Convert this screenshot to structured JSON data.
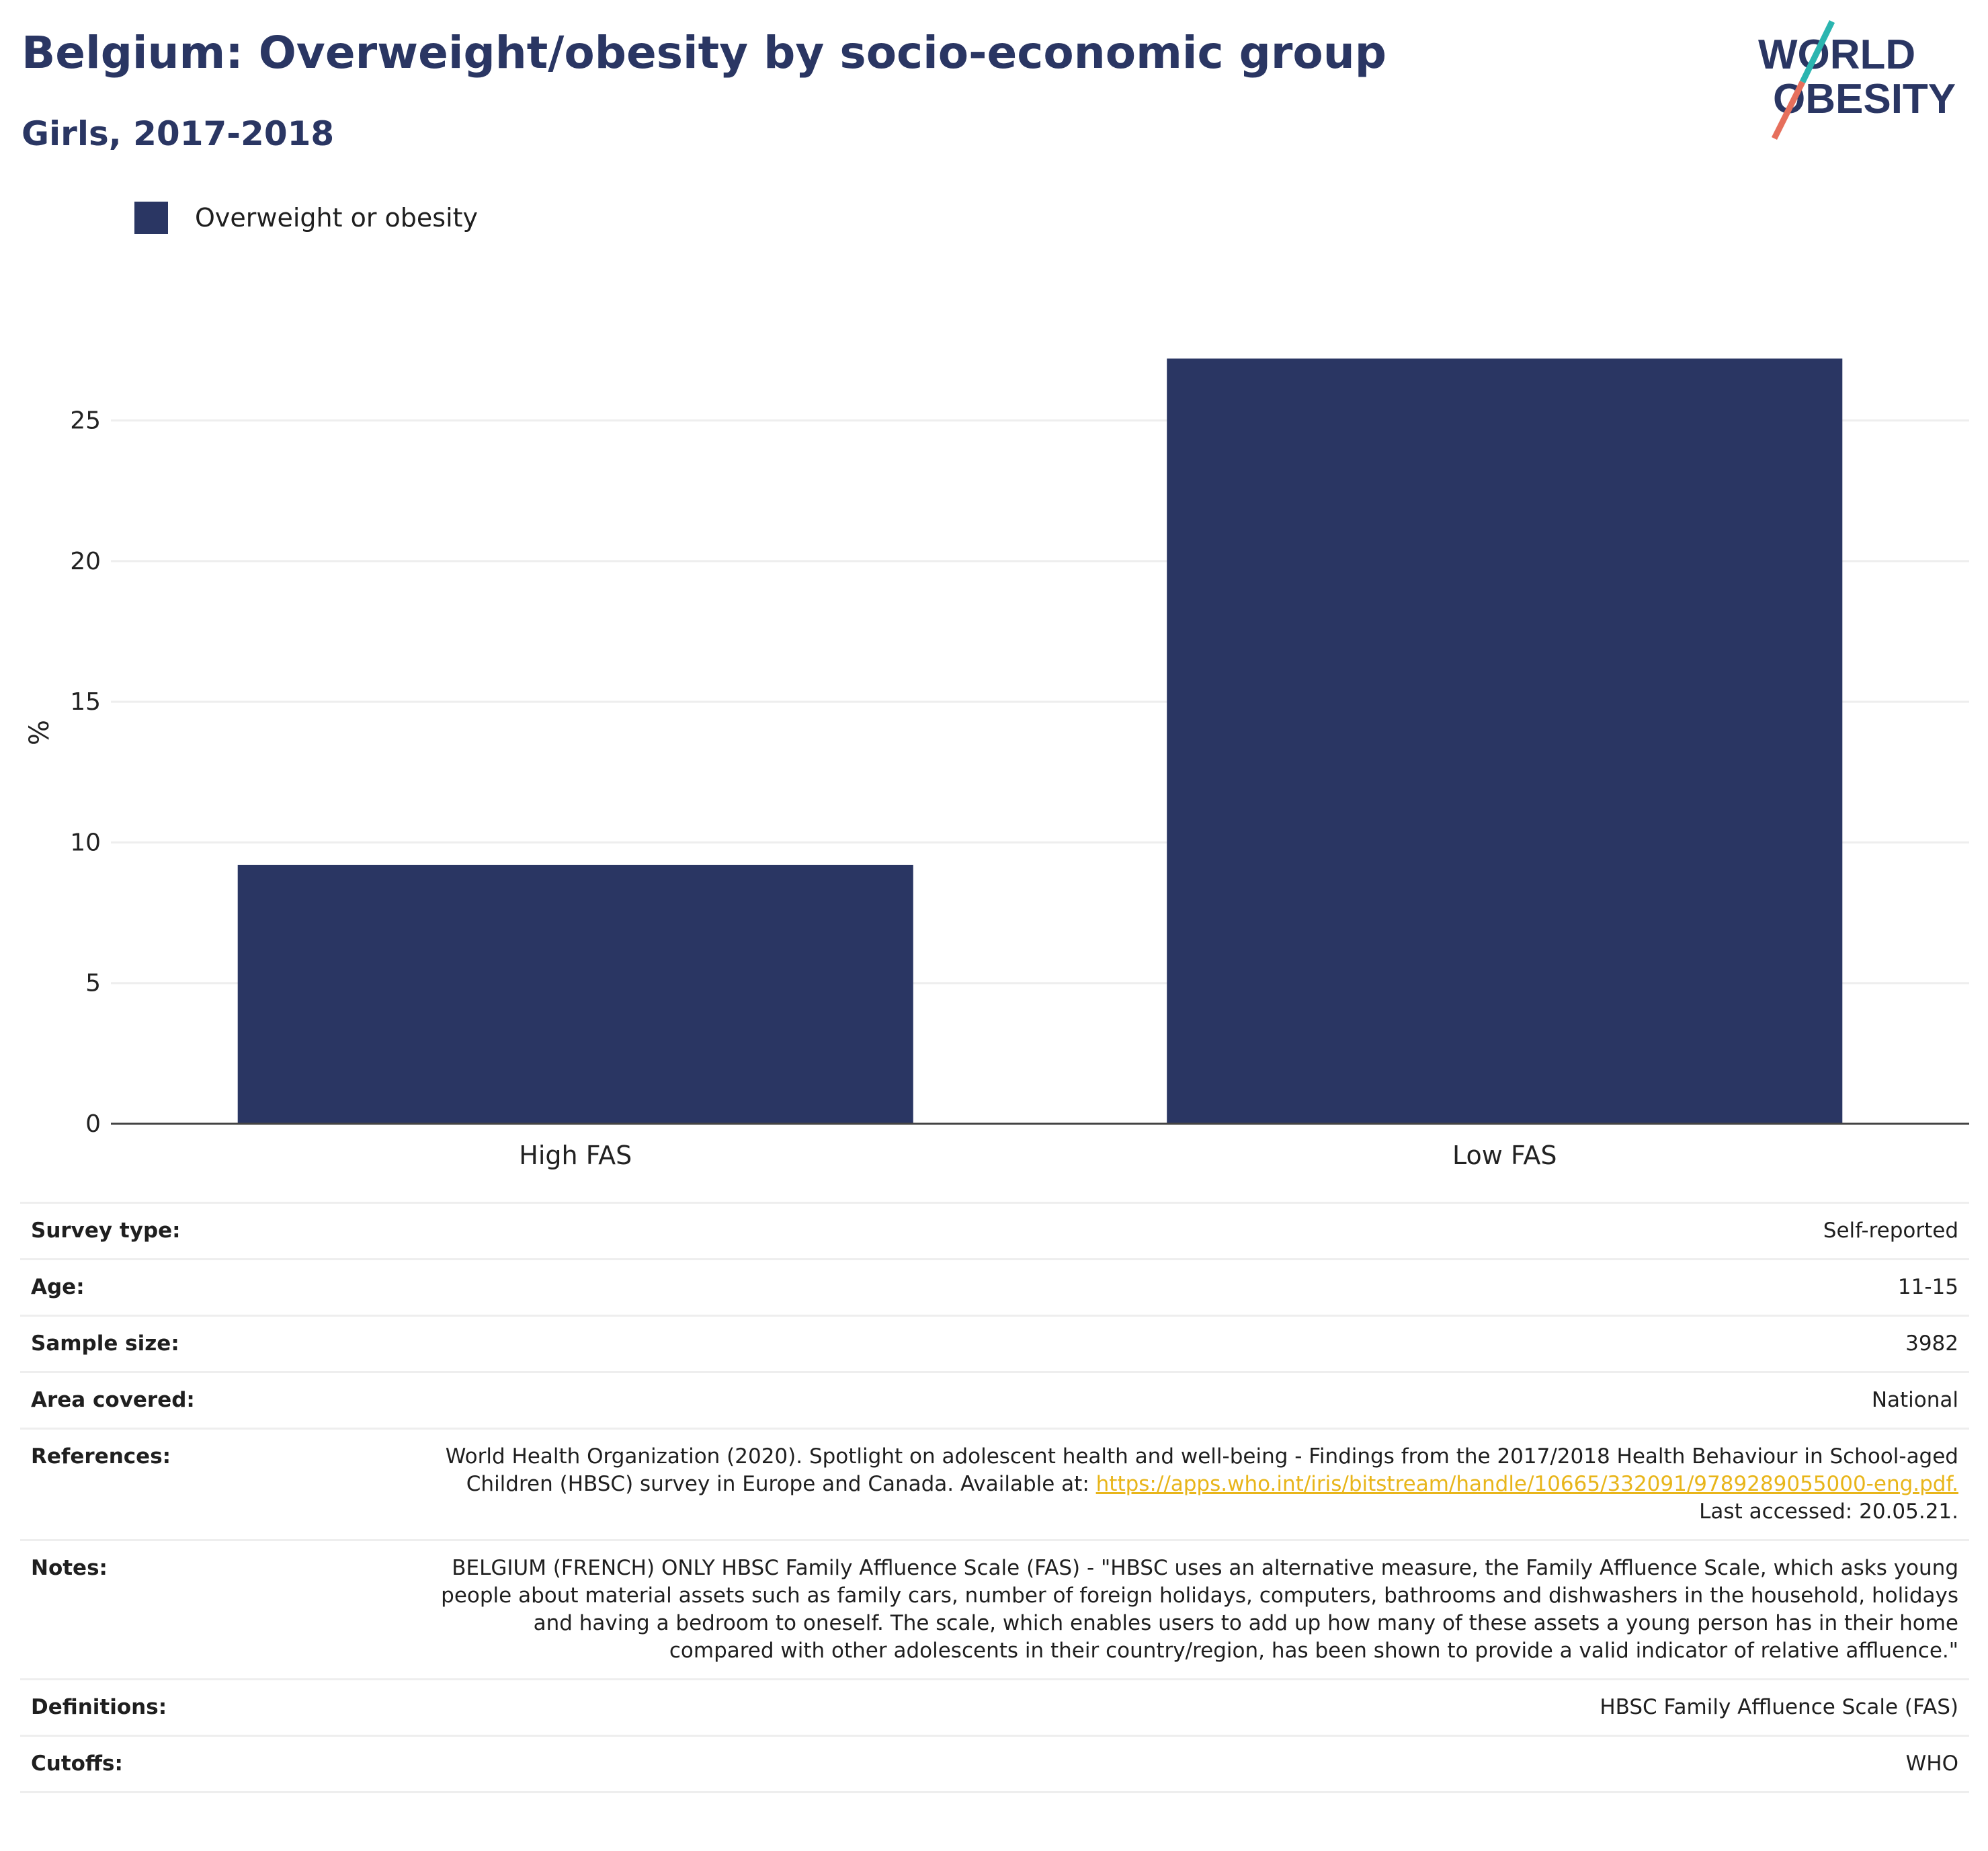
{
  "header": {
    "title": "Belgium: Overweight/obesity by socio-economic group",
    "subtitle": "Girls, 2017-2018"
  },
  "logo": {
    "line1": "WORLD",
    "line2": "OBESITY",
    "colors": {
      "text": "#2a3663",
      "slash_top": "#2bb5b0",
      "slash_bottom": "#e66f5c"
    }
  },
  "colors": {
    "bar": "#2a3663",
    "grid": "#eeeeee",
    "axis": "#444444",
    "link": "#e8b51a"
  },
  "chart_data": {
    "type": "bar",
    "title": "Belgium: Overweight/obesity by socio-economic group",
    "subtitle": "Girls, 2017-2018",
    "categories": [
      "High FAS",
      "Low FAS"
    ],
    "series": [
      {
        "name": "Overweight or obesity",
        "values": [
          9.2,
          27.2
        ],
        "color": "#2a3663"
      }
    ],
    "xlabel": "",
    "ylabel": "%",
    "ylim": [
      0,
      28
    ],
    "yticks": [
      0,
      5,
      10,
      15,
      20,
      25
    ],
    "grid": true,
    "legend_position": "top-left"
  },
  "meta": {
    "rows": [
      {
        "label": "Survey type:",
        "value": "Self-reported"
      },
      {
        "label": "Age:",
        "value": "11-15"
      },
      {
        "label": "Sample size:",
        "value": "3982"
      },
      {
        "label": "Area covered:",
        "value": "National"
      },
      {
        "label": "References:",
        "value": "World Health Organization (2020). Spotlight on adolescent health and well-being - Findings from the 2017/2018 Health Behaviour in School-aged Children (HBSC) survey in Europe and Canada. Available at:",
        "link": "https://apps.who.int/iris/bitstream/handle/10665/332091/9789289055000-eng.pdf.",
        "suffix": " Last accessed: 20.05.21."
      },
      {
        "label": "Notes:",
        "value": "BELGIUM (FRENCH) ONLY HBSC Family Affluence Scale (FAS) - \"HBSC uses an alternative measure, the Family Affluence Scale, which asks young people about material assets such as family cars, number of foreign holidays, computers, bathrooms and dishwashers in the household, holidays and having a bedroom to oneself. The scale, which enables users to add up how many of these assets a young person has in their home compared with other adolescents in their country/region, has been shown to provide a valid indicator of relative affluence.\""
      },
      {
        "label": "Definitions:",
        "value": "HBSC Family Affluence Scale (FAS)"
      },
      {
        "label": "Cutoffs:",
        "value": "WHO"
      }
    ]
  }
}
